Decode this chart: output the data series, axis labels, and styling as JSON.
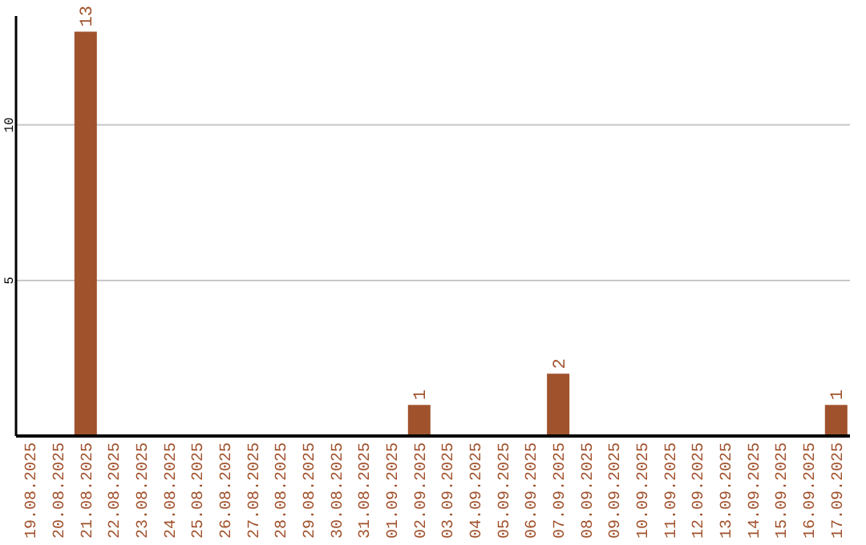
{
  "chart_data": {
    "type": "bar",
    "categories": [
      "19.08.2025",
      "20.08.2025",
      "21.08.2025",
      "22.08.2025",
      "23.08.2025",
      "24.08.2025",
      "25.08.2025",
      "26.08.2025",
      "27.08.2025",
      "28.08.2025",
      "29.08.2025",
      "30.08.2025",
      "31.08.2025",
      "01.09.2025",
      "02.09.2025",
      "03.09.2025",
      "04.09.2025",
      "05.09.2025",
      "06.09.2025",
      "07.09.2025",
      "08.09.2025",
      "09.09.2025",
      "10.09.2025",
      "11.09.2025",
      "12.09.2025",
      "13.09.2025",
      "14.09.2025",
      "15.09.2025",
      "16.09.2025",
      "17.09.2025"
    ],
    "values": [
      0,
      0,
      13,
      0,
      0,
      0,
      0,
      0,
      0,
      0,
      0,
      0,
      0,
      0,
      1,
      0,
      0,
      0,
      0,
      2,
      0,
      0,
      0,
      0,
      0,
      0,
      0,
      0,
      0,
      1
    ],
    "value_labels": [
      null,
      null,
      "13",
      null,
      null,
      null,
      null,
      null,
      null,
      null,
      null,
      null,
      null,
      null,
      "1",
      null,
      null,
      null,
      null,
      "2",
      null,
      null,
      null,
      null,
      null,
      null,
      null,
      null,
      null,
      "1"
    ],
    "color": "#a0522d",
    "ylim": [
      0,
      13.5
    ],
    "yticks": [
      5,
      10
    ],
    "grid": "y"
  }
}
